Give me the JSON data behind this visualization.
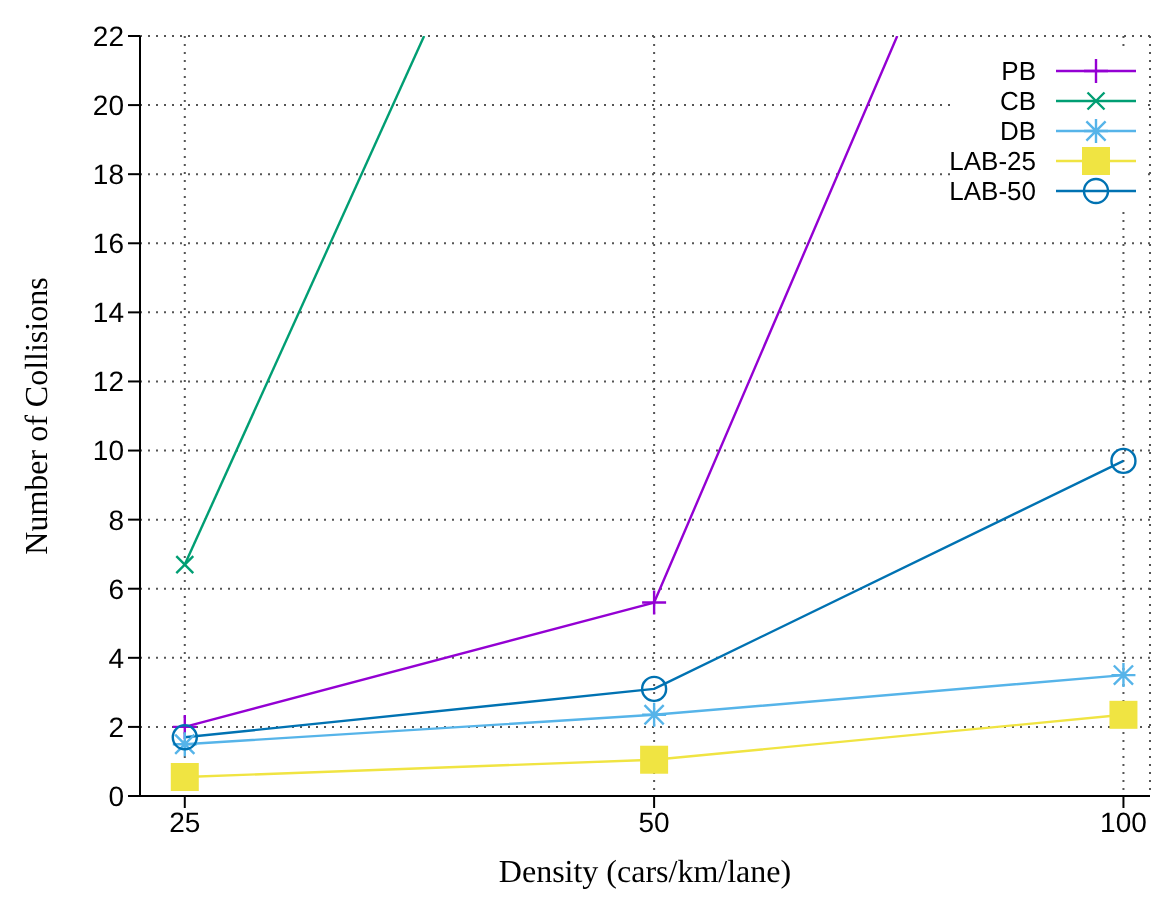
{
  "chart_data": {
    "type": "line",
    "xlabel": "Density (cars/km/lane)",
    "ylabel": "Number of Collisions",
    "log": "x",
    "xlim": [
      23.4,
      104
    ],
    "xticks": [
      25,
      50,
      100
    ],
    "ylim": [
      0,
      22
    ],
    "yticks": [
      0,
      2,
      4,
      6,
      8,
      10,
      12,
      14,
      16,
      18,
      20,
      22
    ],
    "grid": true,
    "legend": "top right",
    "series": [
      {
        "name": "PB",
        "color": "#9400d3",
        "marker": "cross",
        "x": [
          25,
          50,
          71.6
        ],
        "values": [
          2.0,
          5.6,
          22
        ]
      },
      {
        "name": "CB",
        "color": "#009e73",
        "marker": "cross",
        "x": [
          25,
          35.6
        ],
        "values": [
          6.7,
          22
        ]
      },
      {
        "name": "DB",
        "color": "#56b4e9",
        "marker": "cross",
        "x": [
          25,
          50,
          100
        ],
        "values": [
          1.5,
          2.35,
          3.5
        ]
      },
      {
        "name": "LAB-25",
        "color": "#f0e442",
        "marker": "square",
        "x": [
          25,
          50,
          100
        ],
        "values": [
          0.55,
          1.05,
          2.35
        ]
      },
      {
        "name": "LAB-50",
        "color": "#0072b2",
        "marker": "circle",
        "x": [
          25,
          50,
          100
        ],
        "values": [
          1.7,
          3.1,
          9.7
        ]
      }
    ]
  }
}
